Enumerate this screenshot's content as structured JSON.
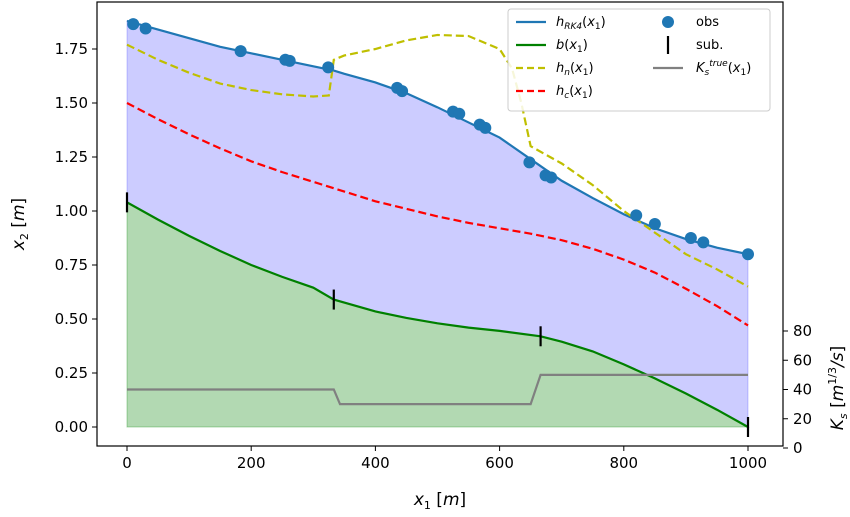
{
  "chart_data": {
    "type": "line",
    "x_axis": {
      "label": "x_1 [m]",
      "range": [
        -50,
        1050
      ],
      "ticks": [
        0,
        200,
        400,
        600,
        800,
        1000
      ],
      "tick_labels": [
        "0",
        "200",
        "400",
        "600",
        "800",
        "1000"
      ]
    },
    "y_axis_left": {
      "label": "x_2 [m]",
      "range": [
        -0.09,
        1.96
      ],
      "ticks": [
        0.0,
        0.25,
        0.5,
        0.75,
        1.0,
        1.25,
        1.5,
        1.75
      ],
      "tick_labels": [
        "0.00",
        "0.25",
        "0.50",
        "0.75",
        "1.00",
        "1.25",
        "1.50",
        "1.75"
      ]
    },
    "y_axis_right": {
      "label": "K_s [m^{1/3}/s]",
      "range": [
        0,
        80
      ],
      "ticks": [
        0,
        20,
        40,
        60,
        80
      ],
      "tick_labels": [
        "0",
        "20",
        "40",
        "60",
        "80"
      ]
    },
    "series": [
      {
        "name": "h_RK4(x_1)",
        "color": "#1f77b4",
        "style": "solid",
        "fill_color": "#0000ff",
        "fill_to": "b(x_1)",
        "x": [
          0,
          50,
          100,
          150,
          200,
          250,
          300,
          333,
          350,
          400,
          450,
          500,
          550,
          600,
          650,
          700,
          750,
          800,
          850,
          900,
          950,
          1000
        ],
        "y": [
          1.88,
          1.84,
          1.8,
          1.76,
          1.73,
          1.7,
          1.67,
          1.65,
          1.635,
          1.595,
          1.545,
          1.48,
          1.41,
          1.34,
          1.24,
          1.14,
          1.06,
          0.985,
          0.92,
          0.87,
          0.83,
          0.8
        ]
      },
      {
        "name": "b(x_1)",
        "color": "#008000",
        "style": "solid",
        "fill_color": "#008000",
        "fill_to": "y=0",
        "x": [
          0,
          50,
          100,
          150,
          200,
          250,
          300,
          333,
          400,
          450,
          500,
          550,
          600,
          666,
          700,
          750,
          800,
          850,
          900,
          950,
          1000
        ],
        "y": [
          1.04,
          0.96,
          0.885,
          0.815,
          0.75,
          0.695,
          0.645,
          0.59,
          0.535,
          0.505,
          0.48,
          0.46,
          0.445,
          0.42,
          0.395,
          0.35,
          0.29,
          0.225,
          0.155,
          0.08,
          0.0
        ]
      },
      {
        "name": "h_n(x_1)",
        "color": "#bfbf00",
        "style": "dashed",
        "x": [
          0,
          50,
          100,
          150,
          200,
          250,
          300,
          325,
          333,
          350,
          400,
          450,
          500,
          550,
          600,
          620,
          635,
          650,
          700,
          750,
          800,
          850,
          900,
          950,
          1000
        ],
        "y": [
          1.77,
          1.7,
          1.64,
          1.59,
          1.56,
          1.54,
          1.53,
          1.535,
          1.7,
          1.72,
          1.75,
          1.79,
          1.815,
          1.81,
          1.75,
          1.66,
          1.5,
          1.3,
          1.22,
          1.12,
          1.0,
          0.9,
          0.8,
          0.73,
          0.65
        ]
      },
      {
        "name": "h_c(x_1)",
        "color": "#ff0000",
        "style": "dashed",
        "x": [
          0,
          50,
          100,
          150,
          200,
          250,
          300,
          350,
          400,
          450,
          500,
          550,
          600,
          650,
          700,
          750,
          800,
          850,
          900,
          950,
          1000
        ],
        "y": [
          1.5,
          1.425,
          1.355,
          1.29,
          1.23,
          1.18,
          1.135,
          1.09,
          1.045,
          1.01,
          0.975,
          0.945,
          0.92,
          0.895,
          0.865,
          0.825,
          0.775,
          0.715,
          0.64,
          0.56,
          0.47
        ]
      },
      {
        "name": "K_s^true(x_1)",
        "color": "#808080",
        "style": "solid",
        "axis": "right",
        "x": [
          0,
          333,
          343,
          650,
          666,
          1000
        ],
        "y": [
          40,
          40,
          30,
          30,
          50,
          50
        ]
      }
    ],
    "obs": {
      "name": "obs",
      "color": "#1f77b4",
      "x": [
        10,
        30,
        183,
        255,
        262,
        324,
        435,
        443,
        525,
        535,
        568,
        577,
        648,
        674,
        683,
        820,
        850,
        908,
        928,
        1000
      ],
      "y": [
        1.865,
        1.845,
        1.74,
        1.7,
        1.695,
        1.665,
        1.57,
        1.555,
        1.46,
        1.45,
        1.4,
        1.385,
        1.225,
        1.165,
        1.155,
        0.98,
        0.94,
        0.875,
        0.855,
        0.8
      ]
    },
    "sub": {
      "name": "sub.",
      "color": "#000000",
      "x": [
        0,
        333,
        666,
        1000
      ],
      "y": [
        1.04,
        0.59,
        0.42,
        0.0
      ]
    },
    "legend": {
      "position": "top-right",
      "entries": [
        "h_RK4(x_1)",
        "b(x_1)",
        "h_n(x_1)",
        "h_c(x_1)",
        "obs",
        "sub.",
        "K_s^true(x_1)"
      ]
    }
  }
}
